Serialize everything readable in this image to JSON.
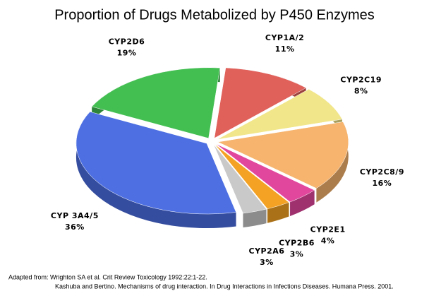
{
  "chart_data": {
    "type": "pie",
    "title": "Proportion of Drugs Metabolized by P450 Enzymes",
    "categories": [
      "CYP1A/2",
      "CYP2C19",
      "CYP2C8/9",
      "CYP2E1",
      "CYP2B6",
      "CYP2A6",
      "CYP 3A4/5",
      "CYP2D6"
    ],
    "values": [
      11,
      8,
      16,
      4,
      3,
      3,
      36,
      19
    ],
    "value_labels": [
      "11%",
      "8%",
      "16%",
      "4%",
      "3%",
      "3%",
      "36%",
      "19%"
    ],
    "colors": [
      "#e0605a",
      "#f2e68a",
      "#f6b46e",
      "#e2479e",
      "#f4a224",
      "#c9c9c9",
      "#4d6fe2",
      "#43bf52"
    ],
    "source": [
      "Adapted from: Wrighton SA et al. Crit Review Toxicology 1992:22:1-22.",
      "Kashuba and Bertino. Mechanisms of drug interaction. In Drug Interactions in Infections Diseases. Humana Press. 2001."
    ]
  }
}
